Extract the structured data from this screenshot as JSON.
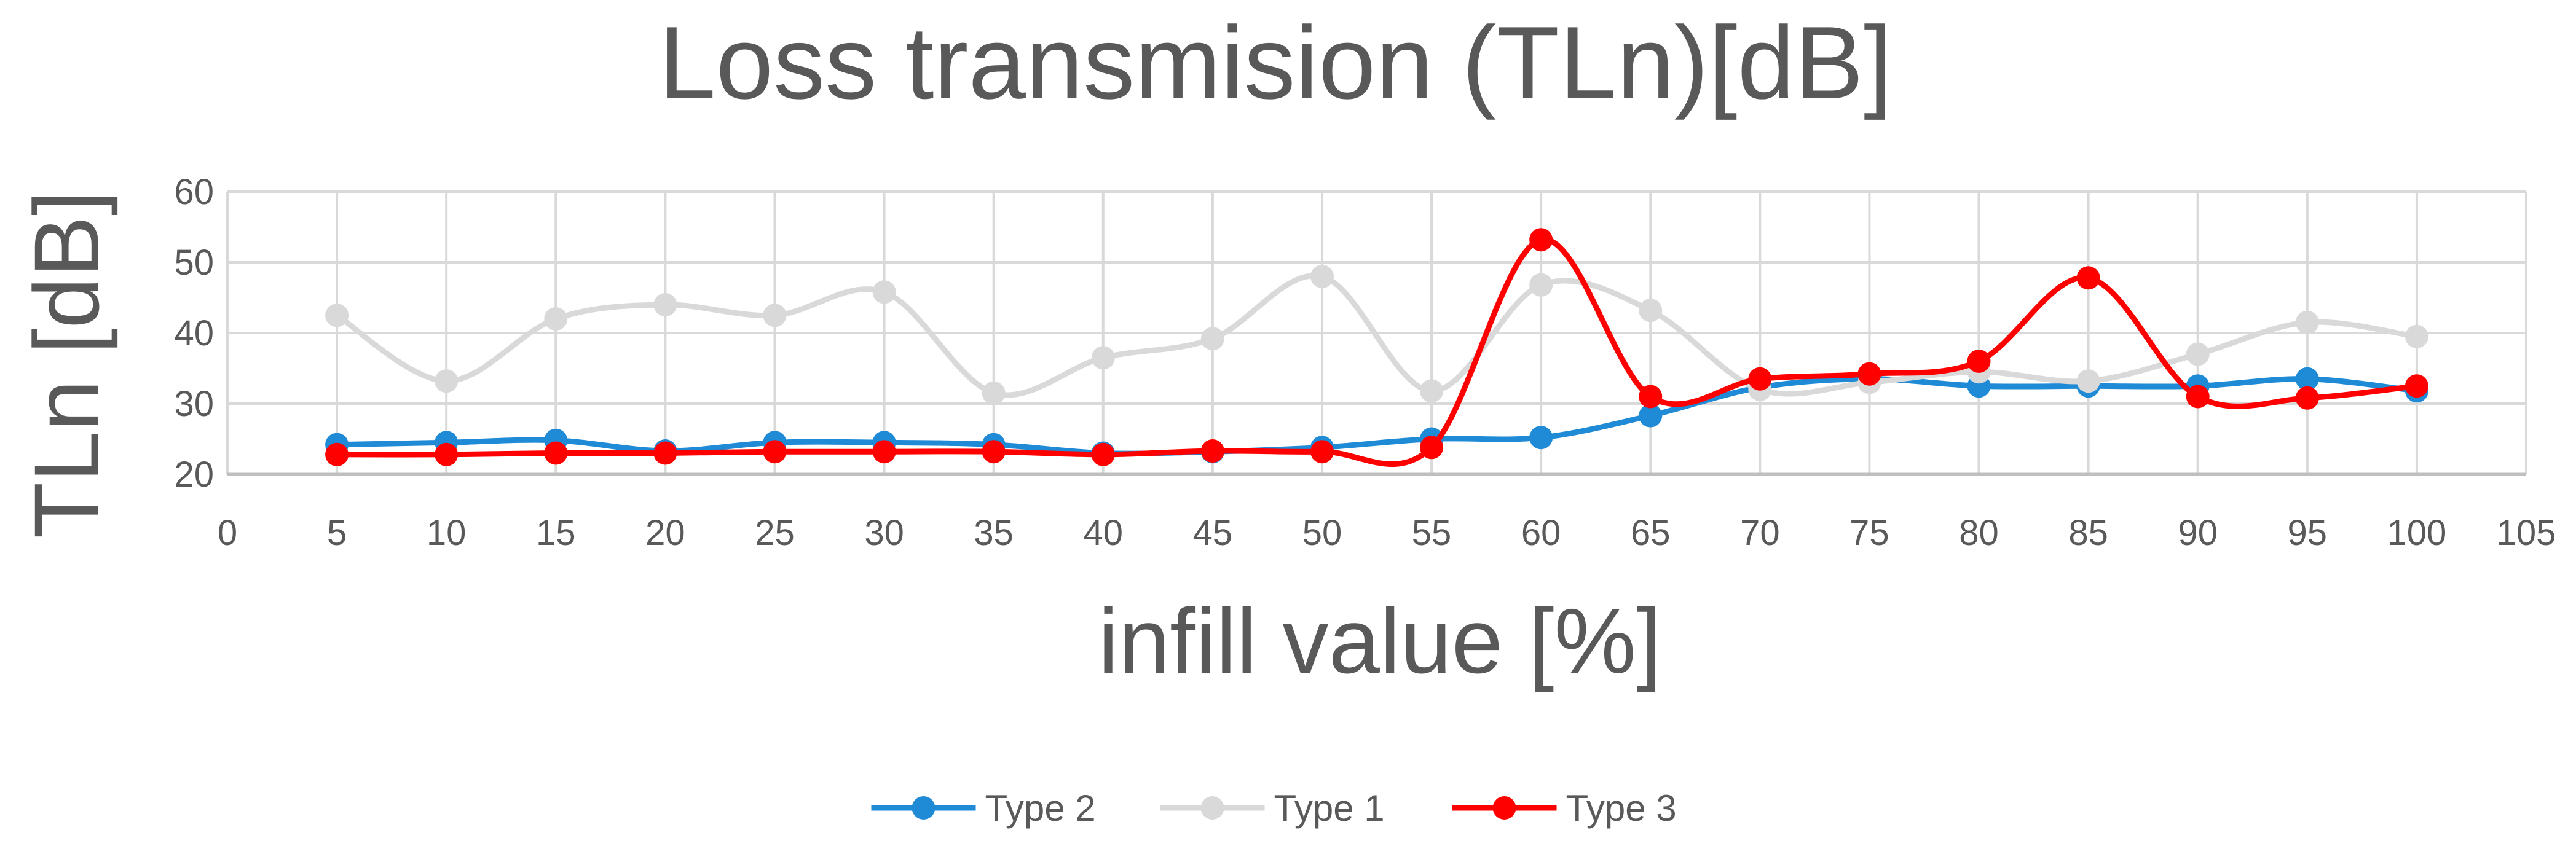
{
  "chart_data": {
    "type": "line",
    "title": "Loss transmision (TLn)[dB]",
    "xlabel": "infill value [%]",
    "ylabel": "TLn [dB]",
    "xlim": [
      0,
      105
    ],
    "ylim": [
      20,
      60
    ],
    "x_ticks": [
      0,
      5,
      10,
      15,
      20,
      25,
      30,
      35,
      40,
      45,
      50,
      55,
      60,
      65,
      70,
      75,
      80,
      85,
      90,
      95,
      100,
      105
    ],
    "y_ticks": [
      20,
      30,
      40,
      50,
      60
    ],
    "x": [
      5,
      10,
      15,
      20,
      25,
      30,
      35,
      40,
      45,
      50,
      55,
      60,
      65,
      70,
      75,
      80,
      85,
      90,
      95,
      100
    ],
    "grid": true,
    "smooth": true,
    "legend_position": "bottom",
    "series": [
      {
        "name": "Type 2",
        "color": "#1f8ad6",
        "values": [
          24.2,
          24.5,
          24.8,
          23.3,
          24.5,
          24.5,
          24.2,
          23.0,
          23.2,
          23.8,
          25.0,
          25.2,
          28.3,
          32.3,
          33.5,
          32.5,
          32.5,
          32.5,
          33.5,
          31.8
        ]
      },
      {
        "name": "Type 1",
        "color": "#d9d9d9",
        "values": [
          42.5,
          33.2,
          42.0,
          44.0,
          42.5,
          45.8,
          31.5,
          36.5,
          39.2,
          48.0,
          31.8,
          46.8,
          43.2,
          32.0,
          33.0,
          34.5,
          33.2,
          37.0,
          41.5,
          39.5
        ]
      },
      {
        "name": "Type 3",
        "color": "#ff0000",
        "values": [
          22.8,
          22.8,
          23.0,
          23.0,
          23.2,
          23.2,
          23.2,
          22.8,
          23.3,
          23.2,
          23.8,
          53.2,
          31.0,
          33.5,
          34.2,
          36.0,
          47.8,
          31.0,
          30.8,
          32.5
        ]
      }
    ]
  }
}
